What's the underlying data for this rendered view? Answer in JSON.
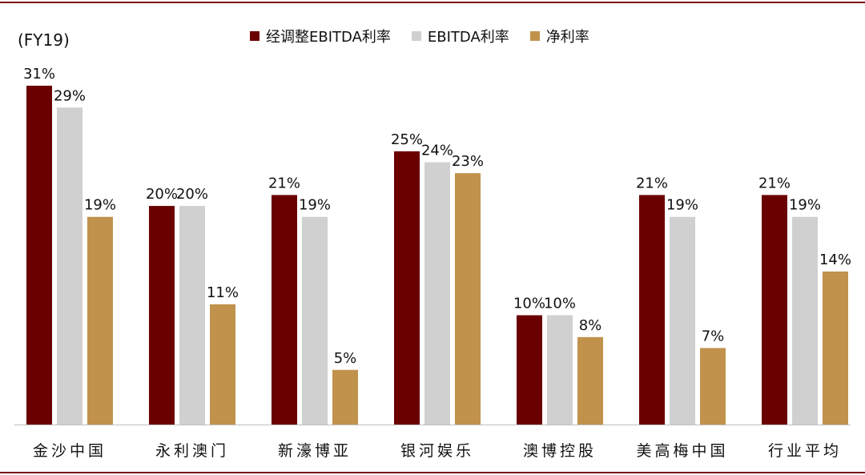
{
  "chart_data": {
    "type": "bar",
    "unit_label": "(FY19)",
    "categories": [
      "金沙中国",
      "永利澳门",
      "新濠博亚",
      "银河娱乐",
      "澳博控股",
      "美高梅中国",
      "行业平均"
    ],
    "series": [
      {
        "name": "经调整EBITDA利率",
        "color": "#6a0000",
        "values": [
          31,
          20,
          21,
          25,
          10,
          21,
          21
        ],
        "labels": [
          "31%",
          "20%",
          "21%",
          "25%",
          "10%",
          "21%",
          "21%"
        ]
      },
      {
        "name": "EBITDA利率",
        "color": "#d0d0d0",
        "values": [
          29,
          20,
          19,
          24,
          10,
          19,
          19
        ],
        "labels": [
          "29%",
          "20%",
          "19%",
          "24%",
          "10%",
          "19%",
          "19%"
        ]
      },
      {
        "name": "净利率",
        "color": "#c0924c",
        "values": [
          19,
          11,
          5,
          23,
          8,
          7,
          14
        ],
        "labels": [
          "19%",
          "11%",
          "5%",
          "23%",
          "8%",
          "7%",
          "14%"
        ]
      }
    ],
    "ylim": [
      0,
      31
    ],
    "legend_position": "top-center",
    "grid": false
  }
}
